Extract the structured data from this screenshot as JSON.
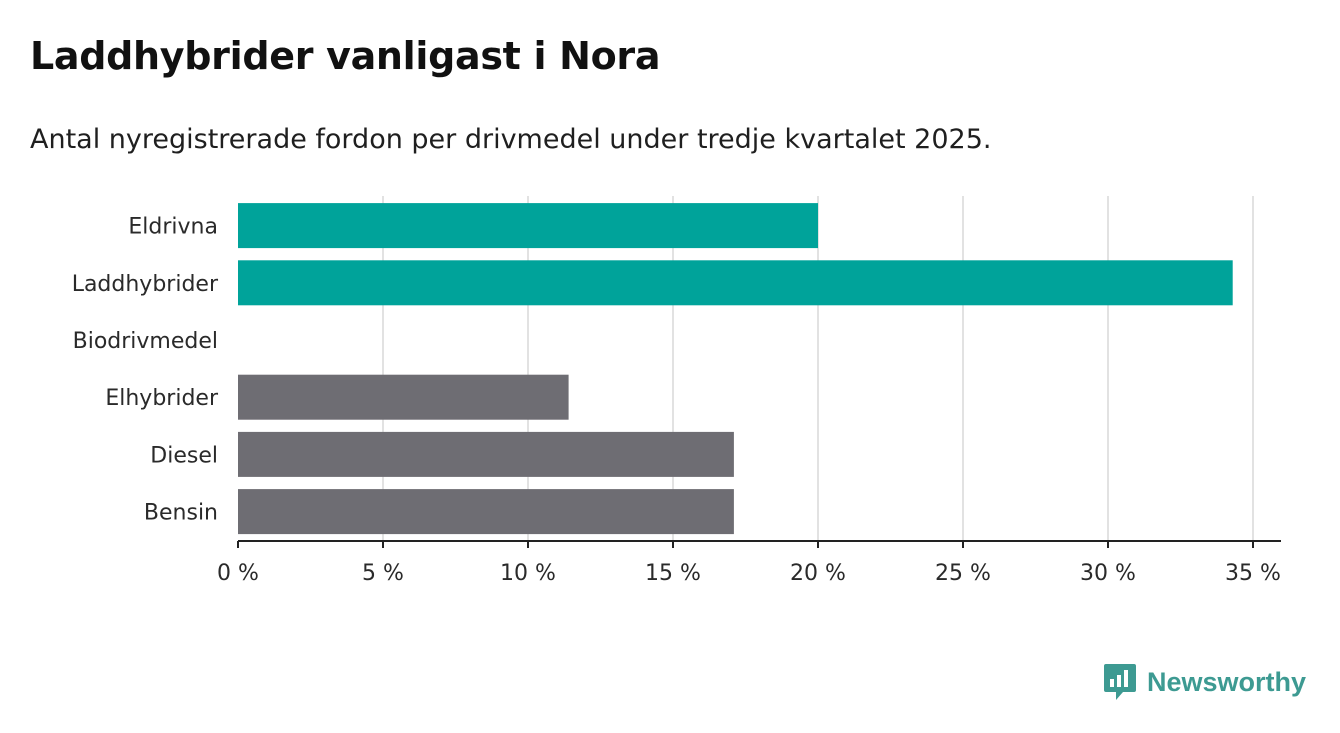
{
  "title": "Laddhybrider vanligast i Nora",
  "subtitle": "Antal nyregistrerade fordon per drivmedel under tredje kvartalet 2025.",
  "brand": {
    "name": "Newsworthy",
    "color": "#3d9a92",
    "icon": "bar-chart-icon"
  },
  "colors": {
    "highlight": "#00a39a",
    "default": "#6e6d73",
    "grid": "#d9d9d9",
    "axis": "#222222"
  },
  "chart_data": {
    "type": "bar",
    "orientation": "horizontal",
    "categories": [
      "Eldrivna",
      "Laddhybrider",
      "Biodrivmedel",
      "Elhybrider",
      "Diesel",
      "Bensin"
    ],
    "values": [
      20.0,
      34.3,
      0,
      11.4,
      17.1,
      17.1
    ],
    "highlight": [
      true,
      true,
      false,
      false,
      false,
      false
    ],
    "xlim": [
      0,
      35
    ],
    "xticks": [
      0,
      5,
      10,
      15,
      20,
      25,
      30,
      35
    ],
    "xtick_labels": [
      "0 %",
      "5 %",
      "10 %",
      "15 %",
      "20 %",
      "25 %",
      "30 %",
      "35 %"
    ],
    "grid": true,
    "title": "Laddhybrider vanligast i Nora",
    "xlabel": "",
    "ylabel": ""
  }
}
